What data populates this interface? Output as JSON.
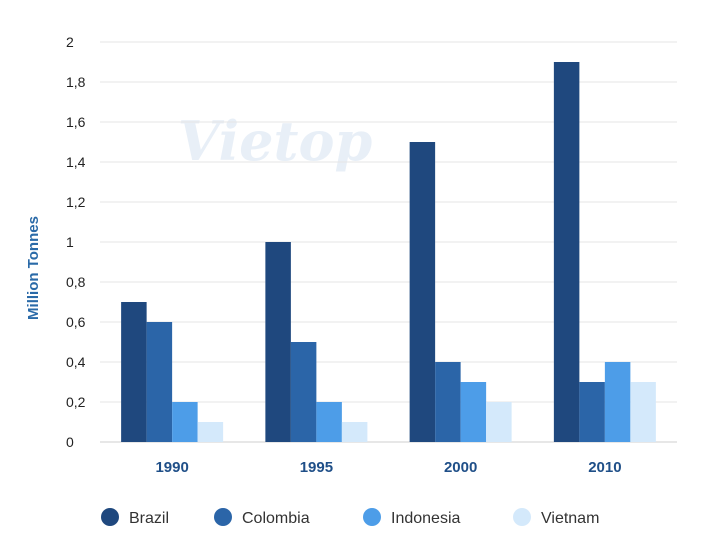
{
  "chart_data": {
    "type": "bar",
    "title": "",
    "xlabel": "",
    "ylabel": "Million Tonnes",
    "ylim": [
      0,
      2
    ],
    "yticks": [
      0,
      0.2,
      0.4,
      0.6,
      0.8,
      1,
      1.2,
      1.4,
      1.6,
      1.8,
      2
    ],
    "ytick_labels": [
      "0",
      "0,2",
      "0,4",
      "0,6",
      "0,8",
      "1",
      "1,2",
      "1,4",
      "1,6",
      "1,8",
      "2"
    ],
    "categories": [
      "1990",
      "1995",
      "2000",
      "2010"
    ],
    "series": [
      {
        "name": "Brazil",
        "color": "#1f487e",
        "values": [
          0.7,
          1.0,
          1.5,
          1.9
        ]
      },
      {
        "name": "Colombia",
        "color": "#2b65a8",
        "values": [
          0.6,
          0.5,
          0.4,
          0.3
        ]
      },
      {
        "name": "Indonesia",
        "color": "#4d9de8",
        "values": [
          0.2,
          0.2,
          0.3,
          0.4
        ]
      },
      {
        "name": "Vietnam",
        "color": "#d4e9fb",
        "values": [
          0.1,
          0.1,
          0.2,
          0.3
        ]
      }
    ],
    "grid": true,
    "legend_position": "bottom"
  },
  "watermark": "Vietop"
}
